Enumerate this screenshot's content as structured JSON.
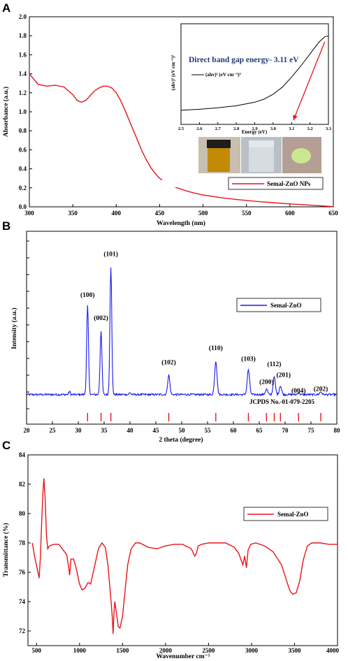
{
  "panels": {
    "a": {
      "letter": "A",
      "legend": "Semal-ZnO NPs",
      "inset": {
        "title": "Direct band gap energy- 3.11 eV",
        "legend": "(ahv)² (eV cm⁻¹)²",
        "ylabel": "(ahv)² (eV cm⁻¹)²",
        "xlabel": "Energy (eV)"
      }
    },
    "b": {
      "letter": "B",
      "annotation": "JCPDS No.-01-079-2205"
    },
    "c": {
      "letter": "C"
    }
  },
  "colors": {
    "series": "#e8141b",
    "xrd": "#1a1aef",
    "inset_curve": "#000000",
    "arrow": "#e8141b",
    "inset_title": "#1f3a7a"
  },
  "chart_data": [
    {
      "type": "line",
      "title": "",
      "xlabel": "Wavelength (nm)",
      "ylabel": "Absorbance (a.u.)",
      "xlim": [
        300,
        650
      ],
      "ylim": [
        0.0,
        2.0
      ],
      "xticks": [
        300,
        350,
        400,
        450,
        500,
        550,
        600,
        650
      ],
      "yticks": [
        0.0,
        0.2,
        0.4,
        0.6,
        0.8,
        1.0,
        1.2,
        1.4,
        1.6,
        1.8,
        2.0
      ],
      "grid": false,
      "legend_position": "bottom-right",
      "series": [
        {
          "name": "Semal-ZnO NPs",
          "x": [
            300,
            310,
            320,
            330,
            340,
            350,
            355,
            360,
            365,
            370,
            375,
            380,
            385,
            390,
            395,
            400,
            405,
            410,
            415,
            420,
            425,
            430,
            435,
            440,
            445,
            450,
            460,
            470,
            480,
            490,
            500,
            520,
            540,
            560,
            580,
            600,
            620,
            640,
            650
          ],
          "y": [
            1.4,
            1.29,
            1.27,
            1.28,
            1.26,
            1.18,
            1.12,
            1.1,
            1.12,
            1.17,
            1.22,
            1.25,
            1.27,
            1.27,
            1.25,
            1.2,
            1.12,
            1.02,
            0.91,
            0.8,
            0.69,
            0.58,
            0.49,
            0.41,
            0.35,
            0.3,
            0.24,
            0.2,
            0.17,
            0.145,
            0.125,
            0.097,
            0.076,
            0.058,
            0.044,
            0.031,
            0.02,
            0.008,
            0.002
          ]
        }
      ]
    },
    {
      "type": "line",
      "title": "Direct band gap energy- 3.11 eV",
      "xlabel": "Energy (eV)",
      "ylabel": "(ahv)² (eV cm⁻¹)²",
      "xlim": [
        2.5,
        3.3
      ],
      "ylim": [
        0,
        1
      ],
      "xticks": [
        2.5,
        2.6,
        2.7,
        2.8,
        2.9,
        3.0,
        3.1,
        3.2,
        3.3
      ],
      "legend_position": "top-left",
      "series": [
        {
          "name": "(ahv)² (eV cm⁻¹)²",
          "x": [
            2.5,
            2.6,
            2.7,
            2.8,
            2.9,
            2.95,
            3.0,
            3.05,
            3.1,
            3.15,
            3.2,
            3.25,
            3.28,
            3.3
          ],
          "y": [
            0.14,
            0.15,
            0.165,
            0.185,
            0.22,
            0.25,
            0.3,
            0.37,
            0.47,
            0.58,
            0.7,
            0.82,
            0.87,
            0.88
          ]
        }
      ],
      "annotation": {
        "arrow_tip_x": 3.11,
        "arrow_tip_y": 0.0,
        "arrow_tail_x": 3.28,
        "arrow_tail_y": 0.82
      }
    },
    {
      "type": "line",
      "title": "",
      "xlabel": "2 theta (degree)",
      "ylabel": "Intensity (a.u.)",
      "xlim": [
        20,
        80
      ],
      "ylim": [
        0,
        100
      ],
      "xticks": [
        20,
        25,
        30,
        35,
        40,
        45,
        50,
        55,
        60,
        65,
        70,
        75,
        80
      ],
      "grid": false,
      "legend_position": "center-right",
      "series": [
        {
          "name": "Semal-ZnO",
          "peaks": [
            {
              "x": 28.3,
              "h": 1.8,
              "w": 0.2
            },
            {
              "x": 31.8,
              "h": 50,
              "w": 0.25
            },
            {
              "x": 34.4,
              "h": 36,
              "w": 0.25
            },
            {
              "x": 36.3,
              "h": 72,
              "w": 0.25
            },
            {
              "x": 40.0,
              "h": 1.0,
              "w": 0.25
            },
            {
              "x": 47.5,
              "h": 11,
              "w": 0.3
            },
            {
              "x": 56.6,
              "h": 19,
              "w": 0.32
            },
            {
              "x": 62.9,
              "h": 14,
              "w": 0.32
            },
            {
              "x": 66.4,
              "h": 3,
              "w": 0.3
            },
            {
              "x": 67.9,
              "h": 10,
              "w": 0.3
            },
            {
              "x": 69.1,
              "h": 5,
              "w": 0.3
            },
            {
              "x": 72.6,
              "h": 1,
              "w": 0.3
            },
            {
              "x": 76.9,
              "h": 1.5,
              "w": 0.3
            }
          ],
          "baseline": 8
        }
      ],
      "peak_labels": [
        {
          "text": "(100)",
          "x": 31.8,
          "y": 63
        },
        {
          "text": "(002)",
          "x": 34.4,
          "y": 50
        },
        {
          "text": "(101)",
          "x": 36.3,
          "y": 86
        },
        {
          "text": "(102)",
          "x": 47.5,
          "y": 25
        },
        {
          "text": "(110)",
          "x": 56.6,
          "y": 33
        },
        {
          "text": "(103)",
          "x": 62.9,
          "y": 27
        },
        {
          "text": "(200)",
          "x": 66.4,
          "y": 14
        },
        {
          "text": "(112)",
          "x": 67.9,
          "y": 24
        },
        {
          "text": "(201)",
          "x": 69.7,
          "y": 18
        },
        {
          "text": "(004)",
          "x": 72.6,
          "y": 9
        },
        {
          "text": "(202)",
          "x": 76.9,
          "y": 10
        }
      ],
      "reference_lines": [
        31.8,
        34.4,
        36.3,
        47.5,
        56.6,
        62.9,
        66.4,
        67.9,
        69.1,
        72.6,
        76.9
      ]
    },
    {
      "type": "line",
      "title": "",
      "xlabel": "Wavenumber cm⁻¹",
      "ylabel": "Transmittance (%)",
      "xlim": [
        400,
        4000
      ],
      "ylim": [
        71,
        84
      ],
      "xticks": [
        500,
        1000,
        1500,
        2000,
        2500,
        3000,
        3500,
        4000
      ],
      "yticks": [
        72,
        74,
        76,
        78,
        80,
        82,
        84
      ],
      "grid": false,
      "legend_position": "center-right",
      "series": [
        {
          "name": "Semal-ZnO",
          "x": [
            450,
            480,
            510,
            530,
            545,
            560,
            575,
            585,
            600,
            615,
            630,
            650,
            700,
            760,
            800,
            850,
            870,
            885,
            900,
            930,
            960,
            1000,
            1030,
            1060,
            1100,
            1130,
            1170,
            1220,
            1260,
            1300,
            1330,
            1360,
            1380,
            1390,
            1400,
            1410,
            1430,
            1450,
            1470,
            1500,
            1530,
            1560,
            1600,
            1650,
            1700,
            1800,
            1900,
            2000,
            2100,
            2200,
            2300,
            2340,
            2360,
            2380,
            2420,
            2500,
            2600,
            2700,
            2800,
            2850,
            2900,
            2920,
            2940,
            2960,
            2990,
            3050,
            3150,
            3250,
            3350,
            3420,
            3450,
            3480,
            3520,
            3560,
            3600,
            3650,
            3700,
            3800,
            3900,
            4000
          ],
          "y": [
            78.0,
            77.0,
            76.2,
            75.6,
            77.0,
            79.5,
            81.5,
            82.4,
            81.0,
            78.5,
            77.6,
            77.8,
            77.9,
            77.9,
            77.6,
            77.2,
            76.5,
            75.8,
            76.9,
            76.9,
            76.3,
            75.2,
            74.8,
            74.9,
            75.3,
            75.2,
            76.3,
            77.6,
            78.0,
            77.7,
            76.5,
            74.5,
            73.0,
            71.8,
            73.2,
            74.0,
            73.2,
            72.3,
            72.2,
            73.0,
            74.8,
            76.5,
            77.6,
            78.0,
            78.0,
            77.7,
            77.6,
            77.8,
            77.9,
            77.9,
            77.6,
            77.1,
            77.3,
            77.8,
            77.9,
            78.0,
            78.0,
            78.0,
            77.7,
            77.3,
            76.5,
            77.1,
            76.3,
            77.5,
            77.9,
            78.0,
            77.8,
            77.4,
            76.5,
            75.2,
            74.7,
            74.5,
            74.6,
            75.4,
            76.8,
            77.8,
            78.0,
            78.0,
            77.9,
            77.9
          ]
        }
      ]
    }
  ]
}
